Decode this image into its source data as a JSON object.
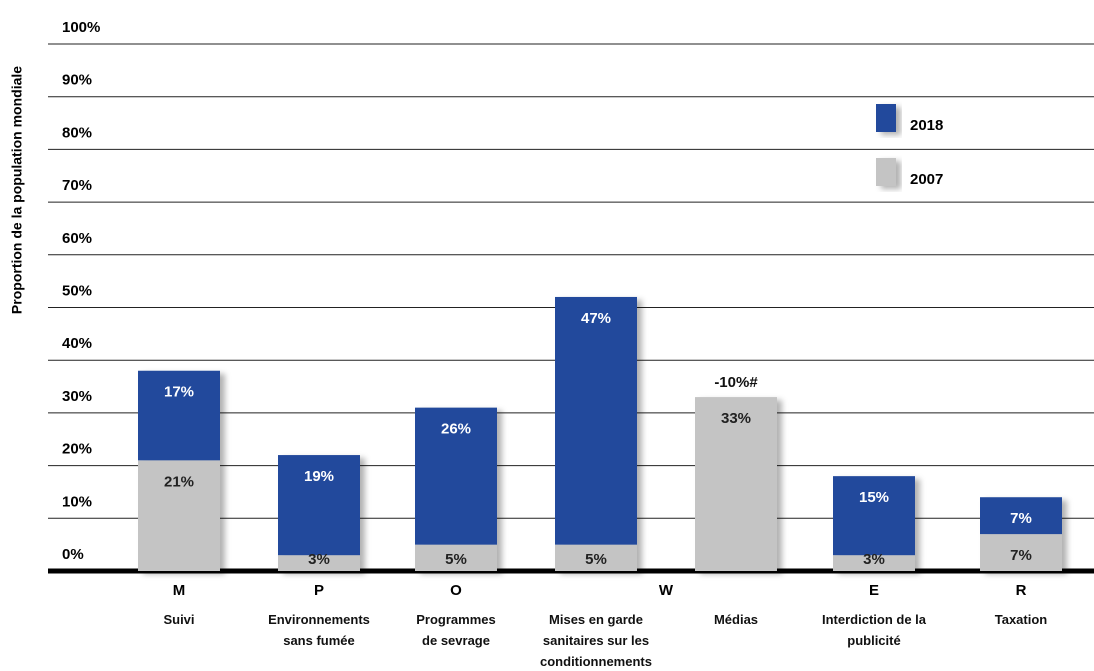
{
  "chart_data": {
    "type": "stacked-bar",
    "y_label": "Proportion de la population mondiale",
    "letters": [
      "M",
      "P",
      "O",
      "W",
      null,
      "E",
      "R"
    ],
    "categories": [
      "Suivi",
      "Environnements\nsans fumée",
      "Programmes\nde sevrage",
      "Mises en garde\nsanitaires sur les\nconditionnements",
      "Médias",
      "Interdiction de la\npublicité",
      "Taxation"
    ],
    "series": [
      {
        "name": "2007",
        "color": "#c4c4c4",
        "label_color": "#222",
        "values": [
          21,
          3,
          5,
          5,
          33,
          3,
          7
        ],
        "value_labels": [
          "21%",
          "3%",
          "5%",
          "5%",
          "33%",
          "3%",
          "7%"
        ]
      },
      {
        "name": "2018",
        "color": "#234a9c",
        "label_color": "#ffffff",
        "values": [
          17,
          19,
          26,
          47,
          null,
          15,
          7
        ],
        "value_labels": [
          "17%",
          "19%",
          "26%",
          "47%",
          null,
          "15%",
          "7%"
        ]
      }
    ],
    "annotations": [
      {
        "text": "-10%#",
        "category": "Médias"
      }
    ],
    "ylim": [
      0,
      100
    ],
    "yticks": [
      {
        "value": 0,
        "label": "0%"
      },
      {
        "value": 10,
        "label": "10%"
      },
      {
        "value": 20,
        "label": "20%"
      },
      {
        "value": 30,
        "label": "30%"
      },
      {
        "value": 40,
        "label": "40%"
      },
      {
        "value": 50,
        "label": "50%"
      },
      {
        "value": 60,
        "label": "60%"
      },
      {
        "value": 70,
        "label": "70%"
      },
      {
        "value": 80,
        "label": "80%"
      },
      {
        "value": 90,
        "label": "90%"
      },
      {
        "value": 100,
        "label": "100%"
      }
    ],
    "grid": true
  }
}
